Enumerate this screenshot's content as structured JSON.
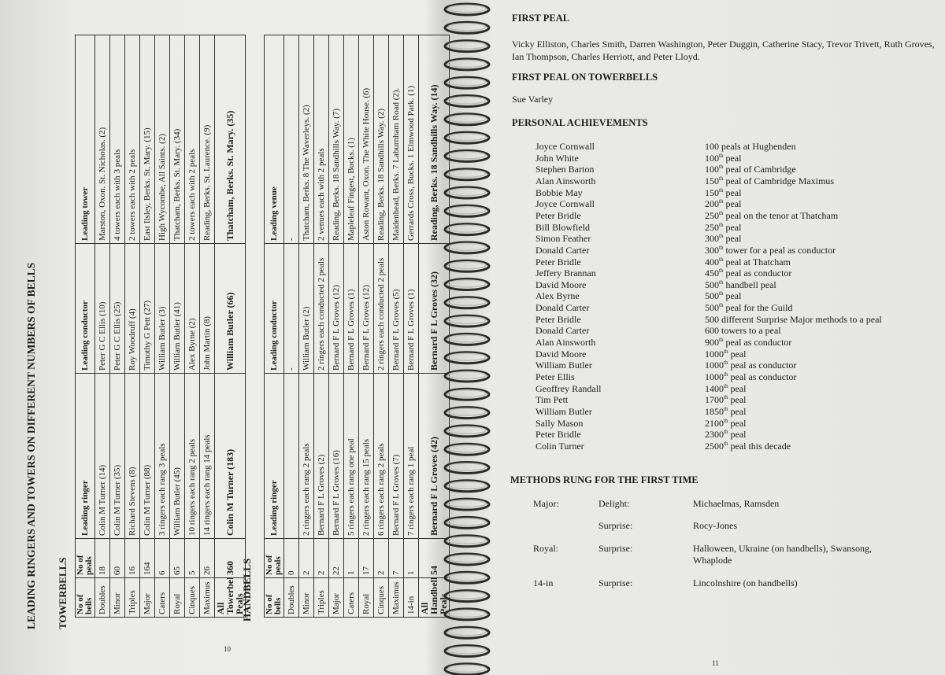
{
  "left_page": {
    "title": "LEADING RINGERS AND TOWERS ON DIFFERENT NUMBERS OF BELLS",
    "towerbells": {
      "heading": "TOWERBELLS",
      "columns": [
        "No of bells",
        "No of peals",
        "Leading ringer",
        "Leading conductor",
        "Leading tower"
      ],
      "rows": [
        [
          "Doubles",
          18,
          "Colin M Turner (14)",
          "Peter G C Ellis (10)",
          "Marston, Oxon. St. Nicholas. (2)"
        ],
        [
          "Minor",
          60,
          "Colin M Turner (35)",
          "Peter G C Ellis (25)",
          "4 towers each with 3 peals"
        ],
        [
          "Triples",
          16,
          "Richard Stevens (8)",
          "Roy Woodruff (4)",
          "2 towers each with 2 peals"
        ],
        [
          "Major",
          164,
          "Colin M Turner (88)",
          "Timothy G Pett (27)",
          "East Ilsley, Berks. St. Mary. (15)"
        ],
        [
          "Caters",
          6,
          "3 ringers each rang 3 peals",
          "William Butler (3)",
          "High Wycombe, All Saints. (2)"
        ],
        [
          "Royal",
          65,
          "William Butler (45)",
          "William Butler (41)",
          "Thatcham, Berks. St. Mary. (34)"
        ],
        [
          "Cinques",
          5,
          "10 ringers each rang 2 peals",
          "Alex Byrne (2)",
          "2 towers each with 2 peals"
        ],
        [
          "Maximus",
          26,
          "14 ringers each rang 14 peals",
          "John Martin (8)",
          "Reading, Berks. St. Laurence. (9)"
        ]
      ],
      "total": [
        "All Towerbell Peals",
        360,
        "Colin M Turner (183)",
        "William Butler (66)",
        "Thatcham, Berks. St. Mary. (35)"
      ]
    },
    "handbells": {
      "heading": "HANDBELLS",
      "columns": [
        "No of bells",
        "No of peals",
        "Leading ringer",
        "Leading conductor",
        "Leading venue"
      ],
      "rows": [
        [
          "Doubles",
          0,
          null,
          "-",
          "-"
        ],
        [
          "Minor",
          2,
          "2 ringers each rang 2 peals",
          "William Butler (2)",
          "Thatcham, Berks. 8 The Waverleys. (2)"
        ],
        [
          "Triples",
          2,
          "Bernard F L Groves (2)",
          "2 ringers each conducted 2 peals",
          "2 venues each with 2 peals"
        ],
        [
          "Major",
          22,
          "Bernard F L Groves (16)",
          "Bernard F L Groves (12)",
          "Reading, Berks. 18 Sandhills Way. (7)"
        ],
        [
          "Caters",
          1,
          "5 ringers each rang one peal",
          "Bernard F L Groves (1)",
          "Mapleleaf Fingest, Bucks. (1)"
        ],
        [
          "Royal",
          17,
          "2 ringers each rang 15 peals",
          "Bernard F L Groves (12)",
          "Aston Rowant, Oxon. The White House. (6)"
        ],
        [
          "Cinques",
          2,
          "6 ringers each rang 2 peals",
          "2 ringers each conducted 2 peals",
          "Reading, Berks. 18 Sandhills Way. (2)"
        ],
        [
          "Maximus",
          7,
          "Bernard F L Groves (7)",
          "Bernard F L Groves (5)",
          "Maidenhead, Berks. 7 Laburnham Road (2)."
        ],
        [
          "14-in",
          1,
          "7 ringers each rang 1 peal",
          "Bernard F L Groves (1)",
          "Gerrards Cross, Bucks. 1 Elmwood Park. (1)"
        ]
      ],
      "total": [
        "All Handbell Peals",
        54,
        "Bernard F L Groves (42)",
        "Bernard F L Groves (32)",
        "Reading, Berks. 18 Sandhills Way. (14)"
      ]
    },
    "page_number": "10"
  },
  "right_page": {
    "first_peal": {
      "heading": "FIRST PEAL",
      "text": "Vicky Elliston, Charles Smith, Darren Washington, Peter Duggin, Catherine Stacy, Trevor Trivett, Ruth Groves, Ian Thompson, Charles Herriott, and Peter Lloyd."
    },
    "first_peal_towerbells": {
      "heading": "FIRST PEAL ON TOWERBELLS",
      "text": "Sue Varley"
    },
    "achievements": {
      "heading": "PERSONAL ACHIEVEMENTS",
      "items": [
        {
          "name": "Joyce Cornwall",
          "text": "100 peals at Hughenden"
        },
        {
          "name": "John White",
          "ordinal": "100",
          "sup": "th",
          "text": "peal"
        },
        {
          "name": "Stephen Barton",
          "ordinal": "100",
          "sup": "th",
          "text": "peal of Cambridge"
        },
        {
          "name": "Alan Ainsworth",
          "ordinal": "150",
          "sup": "th",
          "text": "peal of Cambridge Maximus"
        },
        {
          "name": "Bobbie May",
          "ordinal": "150",
          "sup": "th",
          "text": "peal"
        },
        {
          "name": "Joyce Cornwall",
          "ordinal": "200",
          "sup": "th",
          "text": "peal"
        },
        {
          "name": "Peter Bridle",
          "ordinal": "250",
          "sup": "th",
          "text": "peal on the tenor at Thatcham"
        },
        {
          "name": "Bill Blowfield",
          "ordinal": "250",
          "sup": "th",
          "text": "peal"
        },
        {
          "name": "Simon Feather",
          "ordinal": "300",
          "sup": "th",
          "text": "peal"
        },
        {
          "name": "Donald Carter",
          "ordinal": "300",
          "sup": "th",
          "text": "tower for a peal as conductor"
        },
        {
          "name": "Peter Bridle",
          "ordinal": "400",
          "sup": "th",
          "text": "peal at Thatcham"
        },
        {
          "name": "Jeffery Brannan",
          "ordinal": "450",
          "sup": "th",
          "text": "peal as conductor"
        },
        {
          "name": "David Moore",
          "ordinal": "500",
          "sup": "th",
          "text": "handbell peal"
        },
        {
          "name": "Alex Byrne",
          "ordinal": "500",
          "sup": "th",
          "text": "peal"
        },
        {
          "name": "Donald Carter",
          "ordinal": "500",
          "sup": "th",
          "text": "peal for the Guild"
        },
        {
          "name": "Peter Bridle",
          "text": "500 different Surprise Major methods to a peal"
        },
        {
          "name": "Donald Carter",
          "text": "600 towers to a peal"
        },
        {
          "name": "Alan Ainsworth",
          "ordinal": "900",
          "sup": "th",
          "text": "peal as conductor"
        },
        {
          "name": "David Moore",
          "ordinal": "1000",
          "sup": "th",
          "text": "peal"
        },
        {
          "name": "William Butler",
          "ordinal": "1000",
          "sup": "th",
          "text": "peal as conductor"
        },
        {
          "name": "Peter Ellis",
          "ordinal": "1000",
          "sup": "th",
          "text": "peal as conductor"
        },
        {
          "name": "Geoffrey Randall",
          "ordinal": "1400",
          "sup": "th",
          "text": "peal"
        },
        {
          "name": "Tim Pett",
          "ordinal": "1700",
          "sup": "th",
          "text": "peal"
        },
        {
          "name": "William Butler",
          "ordinal": "1850",
          "sup": "th",
          "text": "peal"
        },
        {
          "name": "Sally Mason",
          "ordinal": "2100",
          "sup": "th",
          "text": "peal"
        },
        {
          "name": "Peter Bridle",
          "ordinal": "2300",
          "sup": "th",
          "text": "peal"
        },
        {
          "name": "Colin Turner",
          "ordinal": "2500",
          "sup": "th",
          "text": "peal this decade"
        }
      ]
    },
    "methods": {
      "heading": "METHODS RUNG FOR THE FIRST TIME",
      "rows": [
        {
          "stage": "Major:",
          "class": "Delight:",
          "methods": "Michaelmas, Ramsden"
        },
        {
          "class": "Surprise:",
          "methods": "Rocy-Jones"
        },
        {
          "stage": "Royal:",
          "class": "Surprise:",
          "methods": "Halloween, Ukraine (on handbells), Swansong, Whaplode"
        },
        {
          "stage": "14-in",
          "class": "Surprise:",
          "methods": "Lincolnshire (on handbells)"
        }
      ]
    },
    "page_number": "11"
  }
}
